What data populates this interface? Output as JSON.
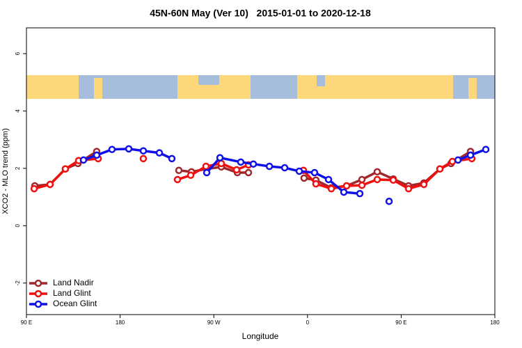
{
  "chart_data": {
    "type": "line",
    "title": "45N-60N May (Ver 10)   2015-01-01 to 2020-12-18",
    "xlabel": "Longitude",
    "ylabel": "XCO2 - MLO trend (ppm)",
    "xlim": [
      90,
      540
    ],
    "xticks": [
      {
        "value": 90,
        "label": "90 E"
      },
      {
        "value": 180,
        "label": "180"
      },
      {
        "value": 270,
        "label": "90 W"
      },
      {
        "value": 360,
        "label": "0"
      },
      {
        "value": 450,
        "label": "90 E"
      },
      {
        "value": 540,
        "label": "180"
      }
    ],
    "ylim": [
      -3.1,
      6.9
    ],
    "yticks": [
      -2,
      0,
      2,
      4,
      6
    ],
    "legend": "bottom-left",
    "series": [
      {
        "name": "Land Nadir",
        "color": "#a0282d",
        "x": [
          98.0,
          112.7,
          127.4,
          139.5,
          157.5,
          null,
          236.4,
          248.5,
          263.2,
          277.2,
          292.6,
          303.3,
          null,
          356.7,
          368.1,
          382.9,
          397.6,
          412.3,
          427.0,
          442.4,
          457.1,
          471.8,
          487.2,
          497.9,
          516.6
        ],
        "values": [
          1.39,
          1.44,
          1.98,
          2.17,
          2.59,
          null,
          1.93,
          1.88,
          1.98,
          2.05,
          1.85,
          1.85,
          null,
          1.66,
          1.59,
          1.32,
          1.39,
          1.61,
          1.88,
          1.63,
          1.39,
          1.49,
          1.98,
          2.17,
          2.59
        ]
      },
      {
        "name": "Land Glint",
        "color": "#f01010",
        "x": [
          97.4,
          112.7,
          127.4,
          140.1,
          158.9,
          null,
          202.3,
          null,
          235.1,
          247.8,
          262.5,
          277.2,
          291.9,
          303.3,
          null,
          356.1,
          368.1,
          382.9,
          397.6,
          412.3,
          427.0,
          442.4,
          457.1,
          471.8,
          487.2,
          499.2,
          517.9
        ],
        "values": [
          1.29,
          1.44,
          1.98,
          2.27,
          2.34,
          null,
          2.34,
          null,
          1.61,
          1.76,
          2.07,
          2.17,
          1.95,
          2.12,
          null,
          1.93,
          1.46,
          1.29,
          1.39,
          1.41,
          1.61,
          1.59,
          1.29,
          1.44,
          1.98,
          2.24,
          2.34
        ]
      },
      {
        "name": "Ocean Glint",
        "color": "#1010e8",
        "x": [
          144.8,
          157.5,
          172.2,
          188.3,
          202.3,
          217.7,
          229.7,
          null,
          263.2,
          275.9,
          295.9,
          308.0,
          323.4,
          338.1,
          352.1,
          366.8,
          380.2,
          394.9,
          410.3,
          null,
          438.4,
          null,
          504.6,
          516.6,
          531.3
        ],
        "values": [
          2.29,
          2.46,
          2.66,
          2.68,
          2.61,
          2.54,
          2.34,
          null,
          1.85,
          2.37,
          2.22,
          2.15,
          2.07,
          2.02,
          1.9,
          1.85,
          1.61,
          1.17,
          1.12,
          null,
          0.85,
          null,
          2.29,
          2.46,
          2.66
        ]
      }
    ]
  }
}
